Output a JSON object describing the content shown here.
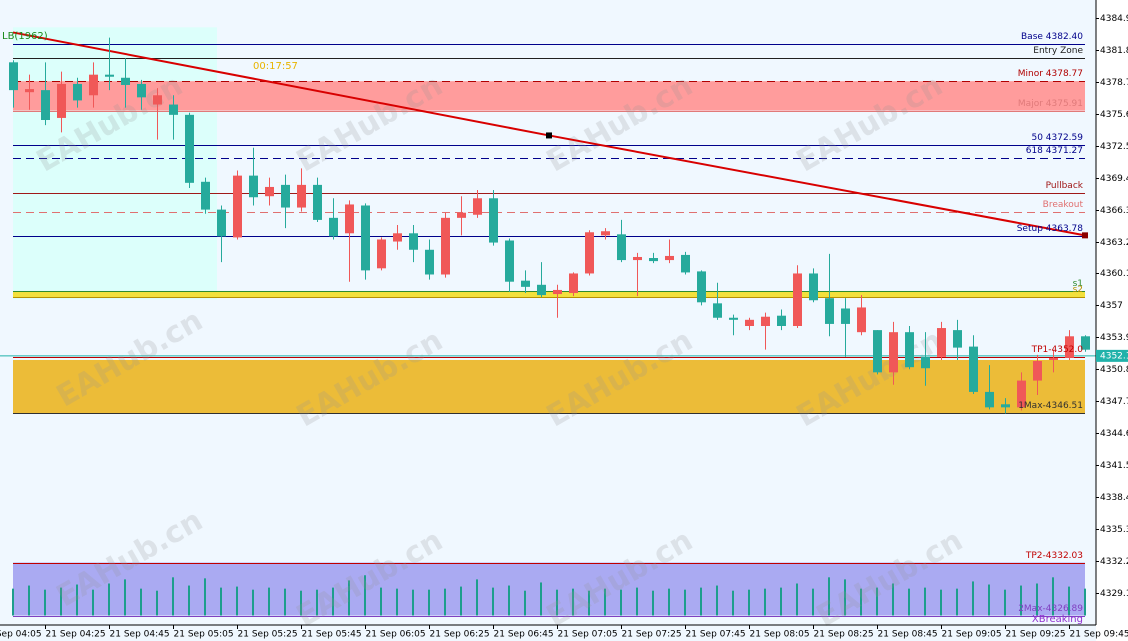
{
  "chart_data": {
    "type": "candlestick",
    "categories": [
      "21 Sep 04:05",
      null,
      null,
      null,
      "21 Sep 04:25",
      null,
      null,
      null,
      "21 Sep 04:45",
      null,
      null,
      null,
      "21 Sep 05:05",
      null,
      null,
      null,
      "21 Sep 05:25",
      null,
      null,
      null,
      "21 Sep 05:45",
      null,
      null,
      null,
      "21 Sep 06:05",
      null,
      null,
      null,
      "21 Sep 06:25",
      null,
      null,
      null,
      "21 Sep 06:45",
      null,
      null,
      null,
      "21 Sep 07:05",
      null,
      null,
      null,
      "21 Sep 07:25",
      null,
      null,
      null,
      "21 Sep 07:45",
      null,
      null,
      null,
      "21 Sep 08:05",
      null,
      null,
      null,
      "21 Sep 08:25",
      null,
      null,
      null,
      "21 Sep 08:45",
      null,
      null,
      null,
      "21 Sep 09:05",
      null,
      null,
      null,
      "21 Sep 09:25",
      null,
      null,
      null,
      "21 Sep 09:45",
      null
    ],
    "open": [
      null,
      null,
      4380.6,
      4377.7,
      4377.9,
      4375.2,
      4378.5,
      4377.4,
      4379.4,
      4379.1,
      4378.5,
      4376.5,
      4376.5,
      4375.5,
      4369.0,
      4366.3,
      4363.6,
      4369.6,
      4367.6,
      4368.7,
      4366.5,
      4368.7,
      4365.5,
      4364.0,
      4366.7,
      4360.6,
      4363.2,
      4364.0,
      4362.4,
      4360.0,
      4365.5,
      4365.8,
      4367.4,
      4363.3,
      4359.4,
      4359.0,
      4358.1,
      4358.2,
      4360.1,
      4363.8,
      4363.9,
      4361.4,
      4361.6,
      4361.4,
      4361.9,
      4360.3,
      4357.2,
      4355.8,
      4355.0,
      4355.0,
      4356.0,
      4355.0,
      4360.1,
      4357.7,
      4356.7,
      4354.4,
      4354.6,
      4350.5,
      4354.4,
      4352.0,
      4352.0,
      4354.6,
      4353.0,
      4348.6,
      4347.4,
      4347.1,
      4349.7,
      4351.7,
      4351.9,
      4354.0
    ],
    "high": [
      null,
      null,
      4380.8,
      4379.4,
      4380.6,
      4379.7,
      4379.1,
      4380.6,
      4383.0,
      4381.0,
      4378.9,
      4378.1,
      4377.4,
      4375.7,
      4369.4,
      4366.7,
      4370.1,
      4372.3,
      4369.4,
      4369.7,
      4370.3,
      4369.4,
      4367.4,
      4367.2,
      4366.9,
      4363.6,
      4364.8,
      4364.8,
      4363.4,
      4366.0,
      4367.6,
      4368.2,
      4368.2,
      4363.5,
      4360.4,
      4361.2,
      4359.0,
      4360.2,
      4364.3,
      4364.5,
      4365.3,
      4362.1,
      4362.1,
      4363.4,
      4362.2,
      4360.4,
      4359.2,
      4356.1,
      4355.8,
      4356.3,
      4356.6,
      4360.9,
      4360.6,
      4362.0,
      4357.7,
      4358.0,
      4354.6,
      4355.4,
      4355.0,
      4354.4,
      4355.4,
      4355.6,
      4354.1,
      4351.2,
      4348.0,
      4350.5,
      4352.2,
      4352.7,
      4354.6,
      4354.1
    ],
    "low": [
      null,
      null,
      4376.2,
      4376.0,
      4374.5,
      4373.8,
      4376.2,
      4376.2,
      4377.9,
      4376.2,
      4376.0,
      4373.1,
      4373.1,
      4368.4,
      4365.9,
      4361.2,
      4363.4,
      4366.7,
      4366.7,
      4364.5,
      4366.1,
      4365.1,
      4363.4,
      4359.3,
      4359.5,
      4360.4,
      4362.4,
      4361.2,
      4359.5,
      4359.7,
      4363.8,
      4365.5,
      4362.8,
      4358.3,
      4358.2,
      4357.8,
      4355.8,
      4357.9,
      4359.9,
      4363.4,
      4361.2,
      4357.9,
      4361.1,
      4361.1,
      4360.0,
      4357.0,
      4355.6,
      4354.1,
      4354.6,
      4352.7,
      4354.6,
      4354.8,
      4357.3,
      4354.0,
      4352.0,
      4354.1,
      4350.3,
      4349.3,
      4350.8,
      4349.2,
      4351.7,
      4351.7,
      4348.4,
      4346.9,
      4346.5,
      4346.8,
      4348.3,
      4350.5,
      4351.7,
      4352.5
    ],
    "close": [
      null,
      null,
      4377.9,
      4378.0,
      4375.0,
      4378.5,
      4376.9,
      4379.4,
      4379.2,
      4378.4,
      4377.2,
      4377.4,
      4375.5,
      4368.9,
      4366.3,
      4363.7,
      4369.6,
      4367.5,
      4368.5,
      4366.5,
      4368.7,
      4365.3,
      4363.7,
      4366.8,
      4360.4,
      4363.4,
      4364.0,
      4362.4,
      4360.0,
      4365.5,
      4366.0,
      4367.4,
      4363.1,
      4359.3,
      4358.8,
      4358.0,
      4358.5,
      4360.1,
      4364.1,
      4364.2,
      4361.4,
      4361.7,
      4361.3,
      4361.8,
      4360.2,
      4357.3,
      4355.8,
      4355.6,
      4355.6,
      4355.9,
      4355.0,
      4360.1,
      4357.5,
      4355.2,
      4355.2,
      4356.8,
      4350.5,
      4354.4,
      4351.0,
      4350.9,
      4354.8,
      4352.9,
      4348.6,
      4347.1,
      4347.1,
      4349.7,
      4351.6,
      4351.9,
      4354.0,
      4352.7
    ],
    "up_color": "#f05858",
    "down_color": "#26aa9c",
    "ylim": [
      4325.97,
      4386.65
    ],
    "yticks": [
      4384.9,
      4381.8,
      4378.7,
      4375.6,
      4372.5,
      4369.4,
      4366.3,
      4363.2,
      4360.1,
      4357.0,
      4353.9,
      4350.8,
      4347.7,
      4344.6,
      4341.5,
      4338.4,
      4335.3,
      4332.2,
      4329.1
    ],
    "zones": [
      {
        "top": 4384.0,
        "bottom": 4357.6,
        "x": [
          2,
          14.75
        ],
        "color": "#dcfffb"
      },
      {
        "top": 4378.77,
        "bottom": 4375.91,
        "x": [
          2,
          69
        ],
        "color": "#ff9c9c"
      },
      {
        "top": 4358.4,
        "bottom": 4357.8,
        "x": [
          2,
          69
        ],
        "color": "#f3e03c"
      },
      {
        "top": 4351.7,
        "bottom": 4346.51,
        "x": [
          2,
          69
        ],
        "color": "#ecbc38"
      },
      {
        "top": 4332.03,
        "bottom": 4326.89,
        "x": [
          2,
          69
        ],
        "color": "#aaaaf2"
      }
    ],
    "level_span": [
      2,
      69
    ],
    "levels": [
      {
        "label": "Base 4382.40",
        "value": 4382.4,
        "color": "#00008b"
      },
      {
        "label": "Entry Zone",
        "value": 4381.0,
        "color": "#202020"
      },
      {
        "label": "Minor 4378.77",
        "value": 4378.77,
        "color": "#b00000",
        "dash": true
      },
      {
        "label": "Major 4375.91",
        "value": 4375.91,
        "color": "#e07a7a"
      },
      {
        "label": "50 4372.59",
        "value": 4372.59,
        "color": "#00008b"
      },
      {
        "label": "618 4371.27",
        "value": 4371.27,
        "color": "#00008b",
        "dash": true
      },
      {
        "label": "Pullback",
        "value": 4367.9,
        "color": "#a01818"
      },
      {
        "label": "Breakout",
        "value": 4366.1,
        "color": "#e07070",
        "dash": true
      },
      {
        "label": "Setup 4363.78",
        "value": 4363.78,
        "color": "#00008b"
      },
      {
        "label": "s1",
        "value": 4358.4,
        "color": "#2e8b2e"
      },
      {
        "label": "s2",
        "value": 4357.8,
        "color": "#b89000"
      },
      {
        "label": "TP1-4352.0",
        "value": 4352.0,
        "color": "#c00000"
      },
      {
        "label": "1Max-4346.51",
        "value": 4346.51,
        "color": "#303030"
      },
      {
        "label": "TP2-4332.03",
        "value": 4332.03,
        "color": "#c00000"
      },
      {
        "label": "2Max-4326.89",
        "value": 4326.89,
        "color": "#8040c0"
      }
    ],
    "trendline": {
      "x": [
        2,
        35.5,
        69
      ],
      "y": [
        4383.5,
        4373.5,
        4363.8
      ],
      "color": "#d80000"
    },
    "current_price": {
      "value": 4352.1,
      "color": "#20b2aa"
    },
    "indicator": {
      "base": 4326.89,
      "color": "#1e9e8c",
      "values": [
        null,
        null,
        4329.5,
        4329.8,
        4329.4,
        4329.6,
        4329.9,
        4329.4,
        4330.0,
        4330.4,
        4329.5,
        4329.3,
        4330.6,
        4329.8,
        4330.5,
        4329.6,
        4329.7,
        4329.4,
        4329.6,
        4329.5,
        4329.3,
        4329.4,
        4329.6,
        4330.3,
        4330.8,
        4329.6,
        4329.5,
        4329.4,
        4329.4,
        4329.5,
        4329.7,
        4330.4,
        4329.6,
        4329.8,
        4329.3,
        4330.1,
        4329.4,
        4329.5,
        4329.3,
        4329.5,
        4329.4,
        4329.6,
        4329.3,
        4329.5,
        4329.4,
        4329.6,
        4329.8,
        4329.3,
        4329.4,
        4329.5,
        4329.6,
        4330.0,
        4329.5,
        4330.6,
        4330.4,
        4329.5,
        4329.6,
        4330.0,
        4329.5,
        4329.6,
        4329.4,
        4329.5,
        4330.2,
        4329.9,
        4329.4,
        4329.8,
        4330.0,
        4330.6,
        4329.7,
        4329.5
      ]
    },
    "timer": "00:17:57",
    "study_label": "LB(1962)",
    "signal_label": "XBreaking",
    "watermark": "EAHub.cn"
  }
}
